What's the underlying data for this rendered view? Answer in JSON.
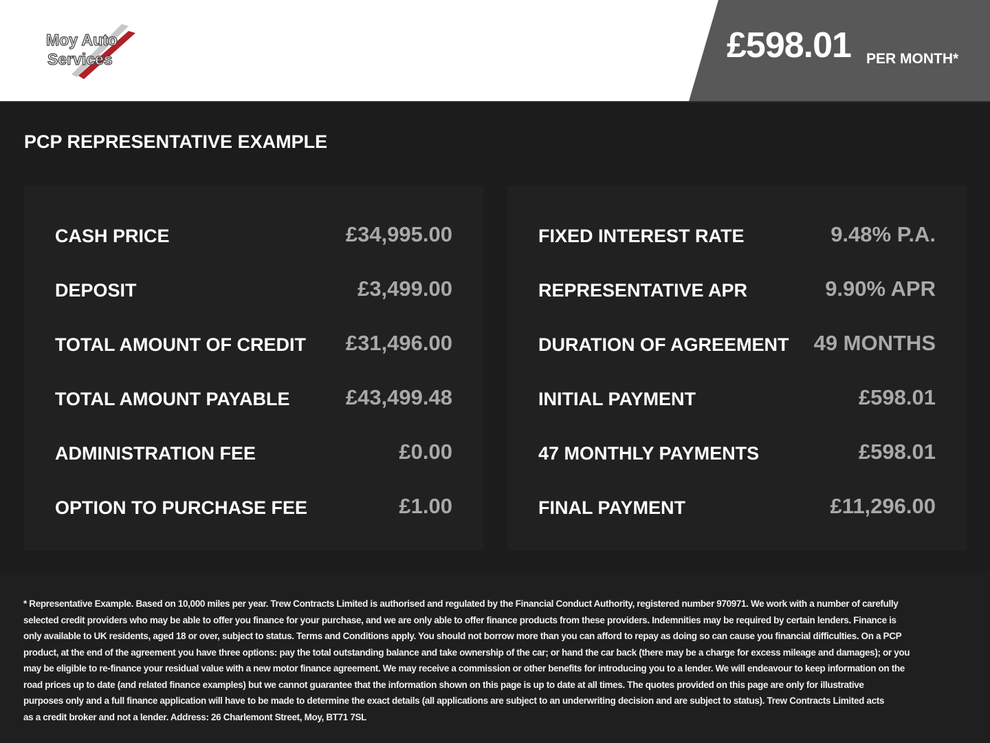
{
  "logo": {
    "text_line1": "Moy Auto",
    "text_line2": "Services"
  },
  "header": {
    "price": "£598.01",
    "per_month": "PER MONTH*",
    "badge_color": "#585858"
  },
  "section_title": "PCP REPRESENTATIVE EXAMPLE",
  "left_panel": [
    {
      "label": "CASH PRICE",
      "value": "£34,995.00"
    },
    {
      "label": "DEPOSIT",
      "value": "£3,499.00"
    },
    {
      "label": "TOTAL AMOUNT OF CREDIT",
      "value": "£31,496.00"
    },
    {
      "label": "TOTAL AMOUNT PAYABLE",
      "value": "£43,499.48"
    },
    {
      "label": "ADMINISTRATION FEE",
      "value": "£0.00"
    },
    {
      "label": "OPTION TO PURCHASE FEE",
      "value": "£1.00"
    }
  ],
  "right_panel": [
    {
      "label": "FIXED INTEREST RATE",
      "value": "9.48% P.A."
    },
    {
      "label": "REPRESENTATIVE APR",
      "value": "9.90% APR"
    },
    {
      "label": "DURATION OF AGREEMENT",
      "value": "49 MONTHS"
    },
    {
      "label": "INITIAL PAYMENT",
      "value": "£598.01"
    },
    {
      "label": "47 MONTHLY PAYMENTS",
      "value": "£598.01"
    },
    {
      "label": "FINAL PAYMENT",
      "value": "£11,296.00"
    }
  ],
  "disclaimer": [
    "* Representative Example. Based on 10,000 miles per year. Trew Contracts Limited is authorised and regulated by the Financial Conduct Authority, registered number 970971. We work with a number of carefully",
    "selected credit providers who may be able to offer you finance for your purchase, and we are only able to offer finance products from these providers. Indemnities may be required by certain lenders. Finance is",
    "only available to UK residents, aged 18 or over, subject to status. Terms and Conditions apply. You should not borrow more than you can afford to repay as doing so can cause you financial difficulties. On a PCP",
    "product, at the end of the agreement you have three options: pay the total outstanding balance and take ownership of the car; or hand the car back (there may be a charge for excess mileage and damages); or you",
    "may be eligible to re-finance your residual value with a new motor finance agreement. We may receive a commission or other benefits for introducing you to a lender. We will endeavour to keep information on the",
    "road prices up to date (and related finance examples) but we cannot guarantee that the information shown on this page is up to date at all times. The quotes provided on this page are only for illustrative",
    "purposes only and a full finance application will have to be made to determine the exact details (all applications are subject to an underwriting decision and are subject to status). Trew Contracts Limited acts",
    "as a credit broker and not a lender. Address: 26 Charlemont Street, Moy, BT71 7SL"
  ]
}
